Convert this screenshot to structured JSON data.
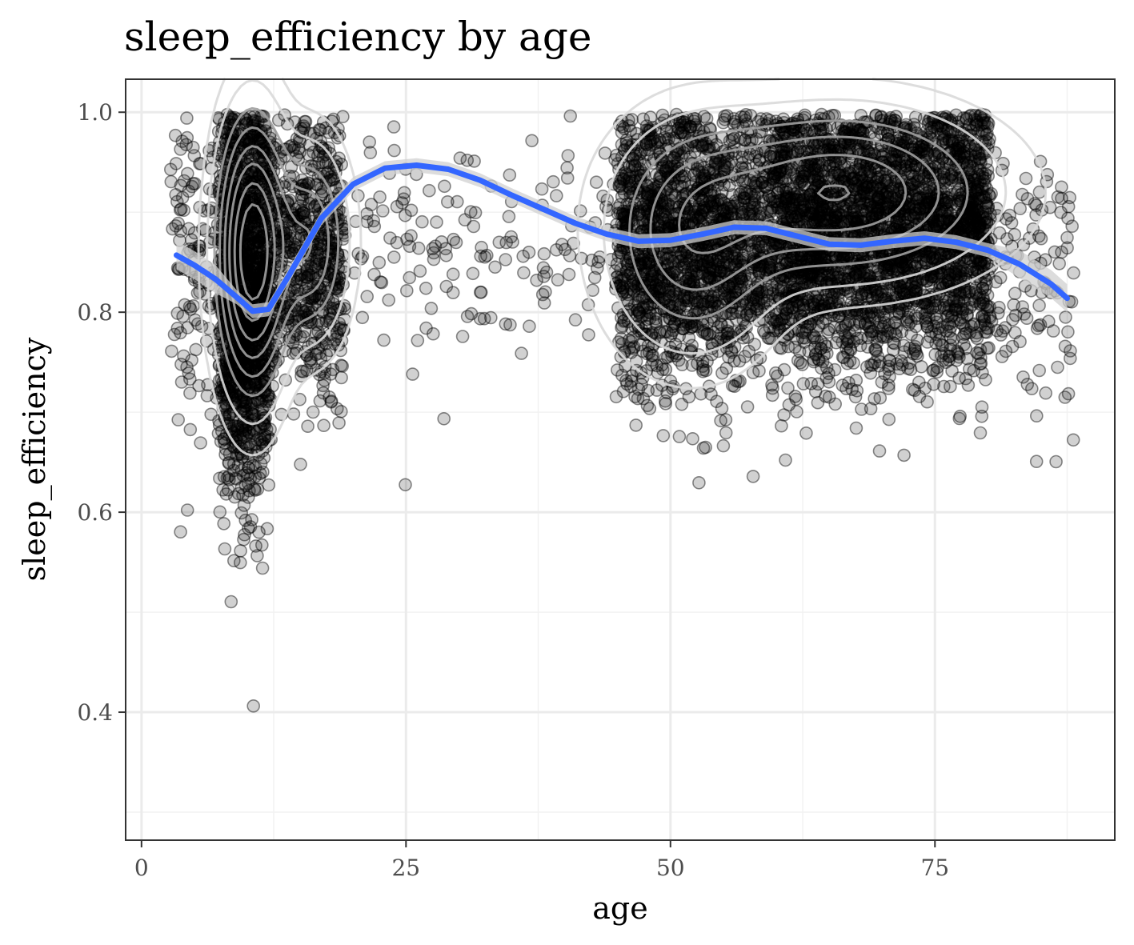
{
  "chart_data": {
    "type": "scatter",
    "title": "sleep_efficiency by age",
    "xlabel": "age",
    "ylabel": "sleep_efficiency",
    "xlim": [
      -1.5,
      92
    ],
    "ylim": [
      0.272,
      1.033
    ],
    "x_ticks": [
      0,
      25,
      50,
      75
    ],
    "x_tick_labels": [
      "0",
      "25",
      "50",
      "75"
    ],
    "y_ticks": [
      0.4,
      0.6,
      0.8,
      1.0
    ],
    "y_tick_labels": [
      "0.4",
      "0.6",
      "0.8",
      "1.0"
    ],
    "grid": true,
    "legend": "none",
    "colors": {
      "points": "#000000",
      "smooth": "#3366ff",
      "ribbon": "#d0d0d0",
      "contour_inner": "#a0a0a0",
      "contour_outer": "#d9d9d9",
      "panel_border": "#333333",
      "grid": "#ebebeb"
    },
    "point_clusters": [
      {
        "x_range": [
          3,
          7
        ],
        "y_mean": 0.86,
        "y_sd": 0.08,
        "count": 120
      },
      {
        "x_range": [
          7.5,
          12
        ],
        "y_mean": 0.82,
        "y_sd": 0.1,
        "count": 1600
      },
      {
        "x_range": [
          12,
          19
        ],
        "y_mean": 0.86,
        "y_sd": 0.07,
        "count": 650
      },
      {
        "x_range": [
          20,
          45
        ],
        "y_mean": 0.86,
        "y_sd": 0.06,
        "count": 160
      },
      {
        "x_range": [
          45,
          60
        ],
        "y_mean": 0.87,
        "y_sd": 0.07,
        "count": 1800
      },
      {
        "x_range": [
          60,
          80
        ],
        "y_mean": 0.88,
        "y_sd": 0.07,
        "count": 3000
      },
      {
        "x_range": [
          80,
          88
        ],
        "y_mean": 0.83,
        "y_sd": 0.07,
        "count": 120
      }
    ],
    "smooth_line": {
      "x": [
        3.3,
        5,
        7,
        9,
        10.5,
        12,
        14,
        17,
        20,
        23,
        26,
        29,
        32,
        35,
        38,
        41,
        44,
        47,
        50,
        53,
        56,
        59,
        62,
        65,
        68,
        71,
        74,
        77,
        80,
        83,
        86,
        87.5
      ],
      "y": [
        0.857,
        0.847,
        0.833,
        0.815,
        0.801,
        0.803,
        0.838,
        0.894,
        0.928,
        0.944,
        0.947,
        0.943,
        0.932,
        0.917,
        0.903,
        0.889,
        0.878,
        0.871,
        0.872,
        0.878,
        0.885,
        0.884,
        0.876,
        0.868,
        0.867,
        0.871,
        0.874,
        0.87,
        0.862,
        0.848,
        0.828,
        0.814
      ]
    },
    "density_peaks": [
      {
        "x": 10.5,
        "y": 0.86,
        "sx": 2.0,
        "sy": 0.08,
        "w": 1.0
      },
      {
        "x": 16,
        "y": 0.87,
        "sx": 2.2,
        "sy": 0.06,
        "w": 0.4
      },
      {
        "x": 66,
        "y": 0.92,
        "sx": 8.5,
        "sy": 0.05,
        "w": 0.55
      },
      {
        "x": 52,
        "y": 0.87,
        "sx": 5,
        "sy": 0.07,
        "w": 0.35
      }
    ],
    "contour_levels": [
      0.04,
      0.1,
      0.2,
      0.3,
      0.42,
      0.55,
      0.7,
      0.85
    ]
  }
}
